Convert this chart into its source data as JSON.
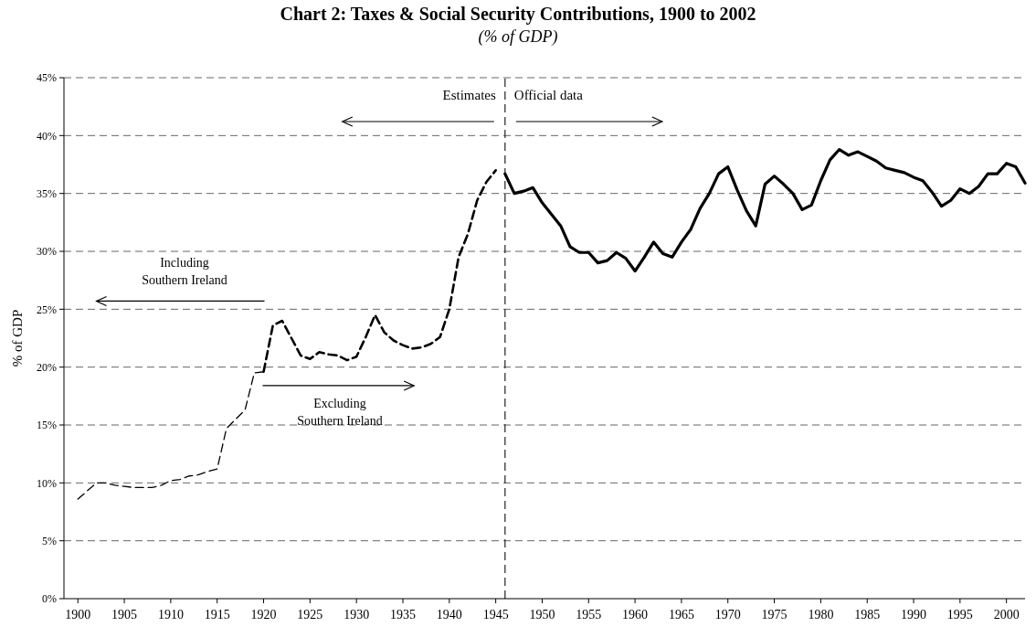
{
  "chart_data": {
    "type": "line",
    "title": "Chart 2: Taxes & Social Security Contributions, 1900 to 2002",
    "subtitle": "(% of GDP)",
    "ylabel": "% of GDP",
    "xlim": [
      1898.5,
      2002
    ],
    "xticks": [
      1900,
      1905,
      1910,
      1915,
      1920,
      1925,
      1930,
      1935,
      1940,
      1945,
      1950,
      1955,
      1960,
      1965,
      1970,
      1975,
      1980,
      1985,
      1990,
      1995,
      2000
    ],
    "ylim": [
      0,
      45
    ],
    "yticks": [
      {
        "value": 0,
        "label": "0%"
      },
      {
        "value": 5,
        "label": "5%"
      },
      {
        "value": 10,
        "label": "10%"
      },
      {
        "value": 15,
        "label": "15%"
      },
      {
        "value": 20,
        "label": "20%"
      },
      {
        "value": 25,
        "label": "25%"
      },
      {
        "value": 30,
        "label": "30%"
      },
      {
        "value": 35,
        "label": "35%"
      },
      {
        "value": 40,
        "label": "40%"
      },
      {
        "value": 45,
        "label": "45%"
      }
    ],
    "grid": "y",
    "marker": "none",
    "series": [
      {
        "color": "#000000",
        "line_style": "dashed",
        "x": [
          1900,
          1901,
          1902,
          1903,
          1904,
          1905,
          1906,
          1907,
          1908,
          1909,
          1910,
          1911,
          1912,
          1913,
          1914,
          1915,
          1916,
          1917,
          1918,
          1919,
          1920
        ],
        "values": [
          8.6,
          9.3,
          10.0,
          10.0,
          9.8,
          9.7,
          9.6,
          9.6,
          9.6,
          9.8,
          10.2,
          10.3,
          10.6,
          10.7,
          11.0,
          11.2,
          14.7,
          15.5,
          16.3,
          19.5,
          19.6
        ]
      },
      {
        "color": "#000000",
        "line_style": "dashed",
        "x": [
          1920,
          1921,
          1922,
          1923,
          1924,
          1925,
          1926,
          1927,
          1928,
          1929,
          1930,
          1931,
          1932,
          1933,
          1934,
          1935,
          1936,
          1937,
          1938,
          1939,
          1940,
          1941,
          1942,
          1943,
          1944,
          1945
        ],
        "values": [
          19.6,
          23.6,
          24.0,
          22.5,
          21.0,
          20.7,
          21.3,
          21.1,
          21.0,
          20.6,
          20.9,
          22.6,
          24.5,
          23.0,
          22.3,
          21.9,
          21.6,
          21.7,
          22.0,
          22.6,
          25.0,
          29.5,
          31.5,
          34.4,
          36.0,
          37.0
        ]
      },
      {
        "color": "#000000",
        "line_style": "solid",
        "x": [
          1946,
          1947,
          1948,
          1949,
          1950,
          1951,
          1952,
          1953,
          1954,
          1955,
          1956,
          1957,
          1958,
          1959,
          1960,
          1961,
          1962,
          1963,
          1964,
          1965,
          1966,
          1967,
          1968,
          1969,
          1970,
          1971,
          1972,
          1973,
          1974,
          1975,
          1976,
          1977,
          1978,
          1979,
          1980,
          1981,
          1982,
          1983,
          1984,
          1985,
          1986,
          1987,
          1988,
          1989,
          1990,
          1991,
          1992,
          1993,
          1994,
          1995,
          1996,
          1997,
          1998,
          1999,
          2000,
          2001,
          2002
        ],
        "values": [
          36.7,
          35.0,
          35.2,
          35.5,
          34.2,
          33.2,
          32.2,
          30.4,
          29.9,
          29.9,
          29.0,
          29.2,
          29.9,
          29.4,
          28.3,
          29.5,
          30.8,
          29.8,
          29.5,
          30.8,
          31.9,
          33.7,
          35.0,
          36.7,
          37.3,
          35.3,
          33.5,
          32.2,
          35.8,
          36.5,
          35.8,
          35.0,
          33.6,
          34.0,
          36.1,
          37.9,
          38.8,
          38.3,
          38.6,
          38.2,
          37.8,
          37.2,
          37.0,
          36.8,
          36.4,
          36.1,
          35.1,
          33.9,
          34.4,
          35.4,
          35.0,
          35.6,
          36.7,
          36.7,
          37.6,
          37.3,
          35.9
        ]
      }
    ],
    "ref_lines": [
      {
        "axis": "x",
        "value": 1946,
        "color": "#333333",
        "line_style": "dashed"
      }
    ],
    "annotations": [
      "Estimates",
      "Official data",
      "Including Southern Ireland",
      "Excluding Southern Ireland"
    ]
  }
}
